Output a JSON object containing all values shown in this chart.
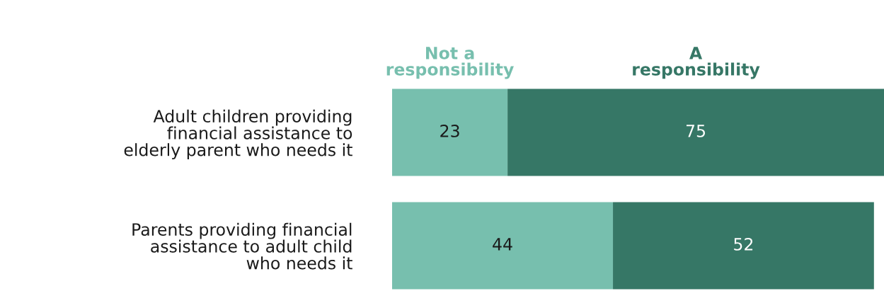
{
  "chart_data": {
    "type": "bar",
    "orientation": "horizontal",
    "categories": [
      "Adult children providing\nfinancial assistance to\nelderly parent who needs it",
      "Parents providing financial\nassistance to adult child\nwho needs it"
    ],
    "series": [
      {
        "name": "Not a\nresponsibility",
        "color": "#77bfae",
        "values": [
          23,
          44
        ]
      },
      {
        "name": "A\nresponsibility",
        "color": "#367766",
        "values": [
          75,
          52
        ]
      }
    ],
    "stacked": true,
    "data_labels": true,
    "tick_labels": "y",
    "legend": "top",
    "grid": false
  }
}
